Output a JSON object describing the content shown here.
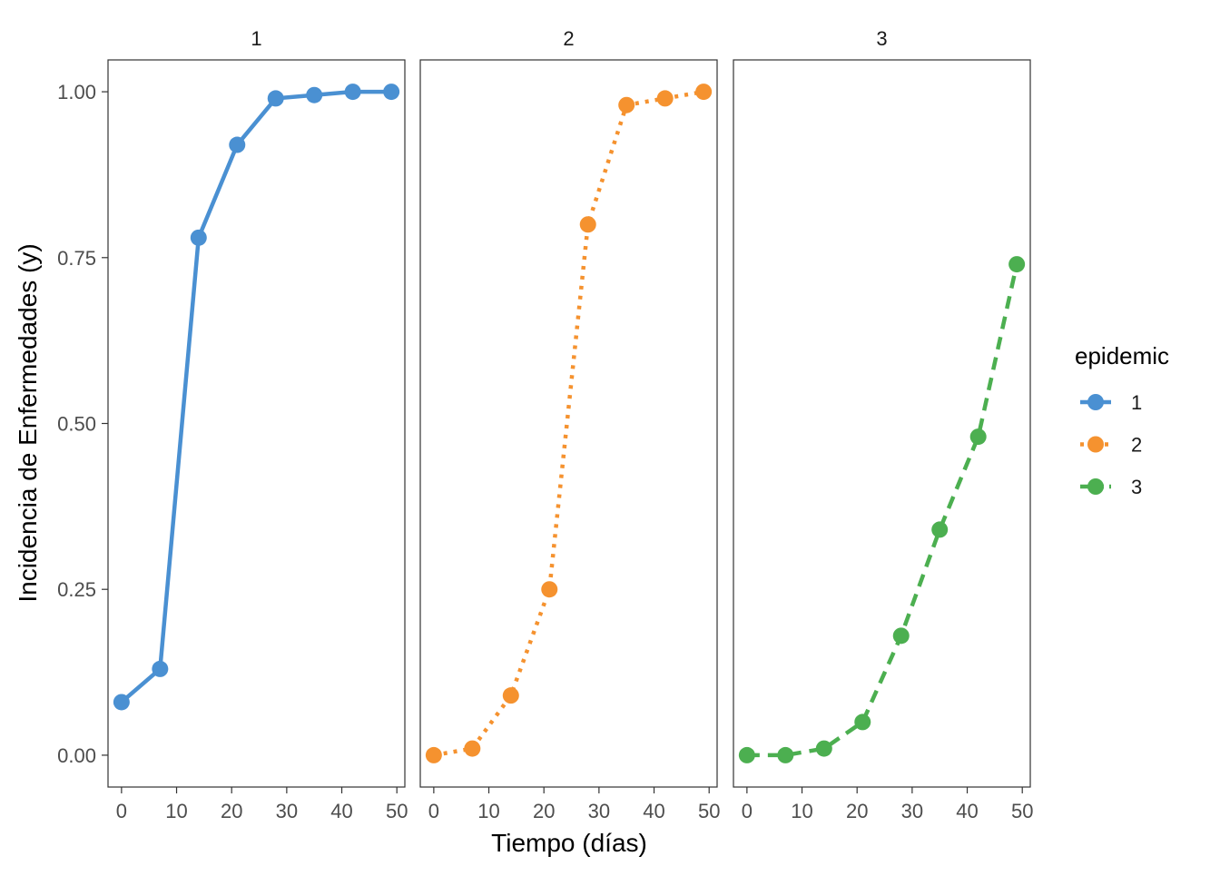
{
  "chart_data": {
    "type": "line",
    "facets": [
      "1",
      "2",
      "3"
    ],
    "xlabel": "Tiempo (días)",
    "ylabel": "Incidencia de Enfermedades (y)",
    "xlim": [
      0,
      50
    ],
    "ylim": [
      0,
      1
    ],
    "x_ticks": [
      "0",
      "10",
      "20",
      "30",
      "40",
      "50"
    ],
    "y_ticks": [
      "0.00",
      "0.25",
      "0.50",
      "0.75",
      "1.00"
    ],
    "grid": false,
    "legend": {
      "title": "epidemic",
      "placement": "right",
      "entries": [
        "1",
        "2",
        "3"
      ]
    },
    "series": [
      {
        "name": "1",
        "color": "#4A90D2",
        "linetype": "solid",
        "x": [
          0,
          7,
          14,
          21,
          28,
          35,
          42,
          49
        ],
        "y": [
          0.08,
          0.13,
          0.78,
          0.92,
          0.99,
          0.995,
          1.0,
          1.0
        ]
      },
      {
        "name": "2",
        "color": "#F5922F",
        "linetype": "dotted",
        "x": [
          0,
          7,
          14,
          21,
          28,
          35,
          42,
          49
        ],
        "y": [
          0.0,
          0.01,
          0.09,
          0.25,
          0.8,
          0.98,
          0.99,
          1.0
        ]
      },
      {
        "name": "3",
        "color": "#4CAF50",
        "linetype": "dashed",
        "x": [
          0,
          7,
          14,
          21,
          28,
          35,
          42,
          49
        ],
        "y": [
          0.0,
          0.0,
          0.01,
          0.05,
          0.18,
          0.34,
          0.48,
          0.74
        ]
      }
    ]
  }
}
